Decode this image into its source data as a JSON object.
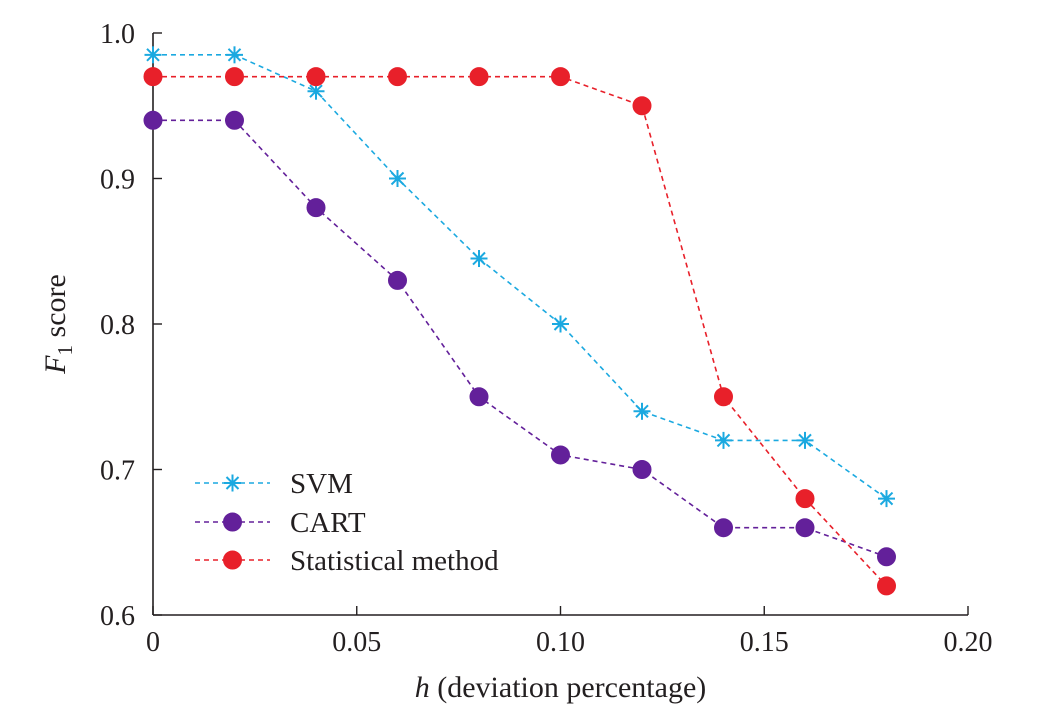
{
  "chart_data": {
    "type": "line",
    "title": "",
    "xlabel": "h (deviation percentage)",
    "xlabel_parts": {
      "var": "h",
      "rest": " (deviation percentage)"
    },
    "ylabel": "F1 score",
    "ylabel_parts": {
      "var": "F",
      "sub": "1",
      "rest": " score"
    },
    "xlim": [
      0,
      0.2
    ],
    "ylim": [
      0.6,
      1.0
    ],
    "x_ticks": [
      0,
      0.05,
      0.1,
      0.15,
      0.2
    ],
    "x_tick_labels": [
      "0",
      "0.05",
      "0.10",
      "0.15",
      "0.20"
    ],
    "y_ticks": [
      0.6,
      0.7,
      0.8,
      0.9,
      1.0
    ],
    "y_tick_labels": [
      "0.6",
      "0.7",
      "0.8",
      "0.9",
      "1.0"
    ],
    "grid": false,
    "legend_position": "bottom-left",
    "x": [
      0,
      0.02,
      0.04,
      0.06,
      0.08,
      0.1,
      0.12,
      0.14,
      0.16,
      0.18
    ],
    "series": [
      {
        "name": "SVM",
        "color": "#1ba9e0",
        "marker": "asterisk",
        "line_style": "dashed",
        "values": [
          0.985,
          0.985,
          0.96,
          0.9,
          0.845,
          0.8,
          0.74,
          0.72,
          0.72,
          0.68
        ]
      },
      {
        "name": "CART",
        "color": "#63209a",
        "marker": "circle",
        "line_style": "dashed",
        "values": [
          0.94,
          0.94,
          0.88,
          0.83,
          0.75,
          0.71,
          0.7,
          0.66,
          0.66,
          0.64
        ]
      },
      {
        "name": "Statistical method",
        "color": "#e8202a",
        "marker": "circle",
        "line_style": "dashed",
        "values": [
          0.97,
          0.97,
          0.97,
          0.97,
          0.97,
          0.97,
          0.95,
          0.75,
          0.68,
          0.62
        ]
      }
    ]
  }
}
